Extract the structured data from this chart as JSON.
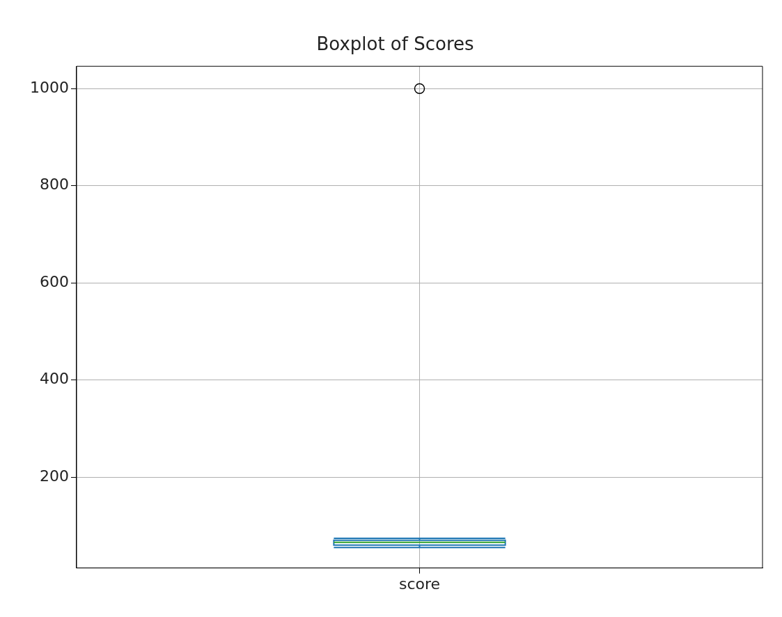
{
  "chart_data": {
    "type": "box",
    "title": "Boxplot of Scores",
    "categories": [
      "score"
    ],
    "boxes": [
      {
        "low": 55,
        "q1": 60,
        "median": 66,
        "q3": 70,
        "high": 74,
        "outliers": [
          1000
        ]
      }
    ],
    "color": "#1f77b4",
    "ylim": [
      13,
      1046
    ],
    "yticks": [
      200,
      400,
      600,
      800,
      1000
    ],
    "grid": true,
    "legend": false
  }
}
